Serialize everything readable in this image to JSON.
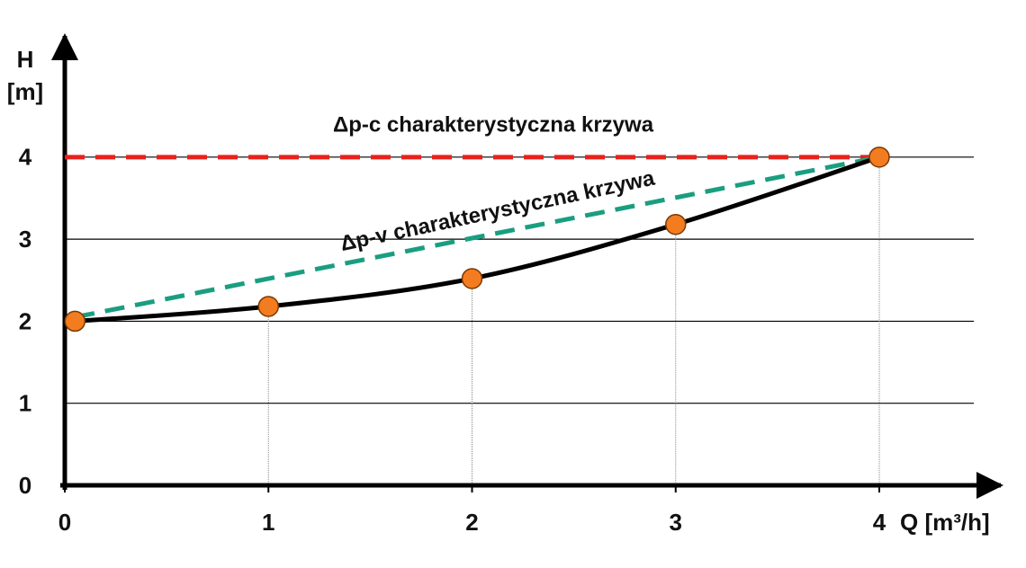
{
  "chart_data": {
    "type": "line",
    "ylabel": [
      "H",
      "[m]"
    ],
    "xlabel": "Q [m³/h]",
    "xlim": [
      0,
      4.6
    ],
    "ylim": [
      0,
      5.5
    ],
    "xticks": [
      0,
      1,
      2,
      3,
      4
    ],
    "yticks": [
      0,
      1,
      2,
      3,
      4
    ],
    "grid": true,
    "marker_color": "#f47c20",
    "series": [
      {
        "name": "Δp-c charakterystyczna krzywa",
        "color": "#e8221b",
        "style": "dashed",
        "x": [
          0,
          4
        ],
        "values": [
          4,
          4
        ]
      },
      {
        "name": "Δp-v charakterystyczna krzywa",
        "color": "#1a9e80",
        "style": "dashed",
        "x": [
          0.05,
          4
        ],
        "values": [
          2.05,
          4
        ]
      },
      {
        "color": "#000000",
        "style": "solid",
        "markers": true,
        "x": [
          0.05,
          1,
          2,
          3,
          4
        ],
        "values": [
          2.0,
          2.18,
          2.52,
          3.18,
          4.0
        ]
      }
    ]
  }
}
